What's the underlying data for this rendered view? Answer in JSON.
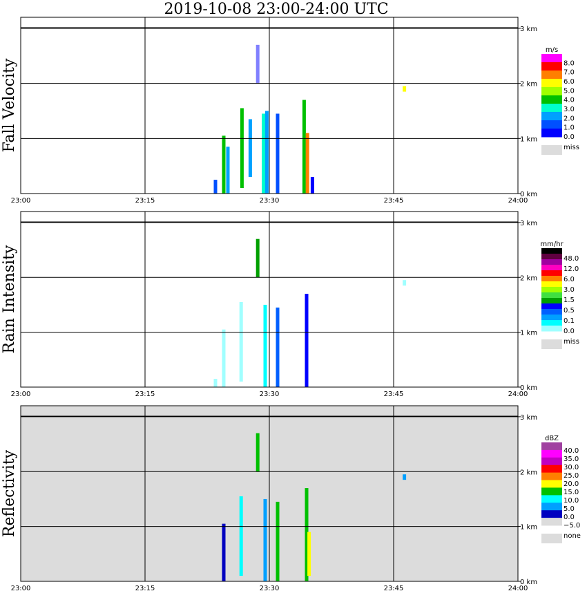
{
  "title": "2019-10-08   23:00-24:00 UTC",
  "chart_data": [
    {
      "type": "heatmap",
      "ylabel": "Fall Velocity",
      "x_ticks": [
        "23:00",
        "23:15",
        "23:30",
        "23:45",
        "24:00"
      ],
      "y_ticks": [
        "0 km",
        "1 km",
        "2 km",
        "3 km"
      ],
      "xlim": [
        "23:00",
        "24:00"
      ],
      "ylim_km": [
        0,
        3.2
      ],
      "background": "#ffffff",
      "colorbar": {
        "unit": "m/s",
        "levels": [
          "8.0",
          "7.0",
          "6.0",
          "5.0",
          "4.0",
          "3.0",
          "2.0",
          "1.0",
          "0.0"
        ],
        "colors": [
          "#ff00ff",
          "#ff0000",
          "#ff7f00",
          "#ffff00",
          "#a0ff00",
          "#00c000",
          "#00ffcc",
          "#00a0ff",
          "#0050ff",
          "#0000ff"
        ],
        "missing_label": "miss",
        "missing_color": "#dcdcdc"
      },
      "echoes": [
        {
          "t": 23.5,
          "bot": 0.0,
          "top": 0.25,
          "color": "#0050ff"
        },
        {
          "t": 24.5,
          "bot": 0.0,
          "top": 1.05,
          "color": "#00c000"
        },
        {
          "t": 25.0,
          "bot": 0.0,
          "top": 0.85,
          "color": "#00a0ff"
        },
        {
          "t": 26.7,
          "bot": 0.1,
          "top": 1.55,
          "color": "#00c000"
        },
        {
          "t": 27.7,
          "bot": 0.3,
          "top": 1.35,
          "color": "#00a0ff"
        },
        {
          "t": 28.6,
          "bot": 2.0,
          "top": 2.7,
          "color": "#8080ff"
        },
        {
          "t": 29.3,
          "bot": 0.0,
          "top": 1.45,
          "color": "#00ffcc"
        },
        {
          "t": 29.7,
          "bot": 0.0,
          "top": 1.5,
          "color": "#00a0ff"
        },
        {
          "t": 31.0,
          "bot": 0.0,
          "top": 1.45,
          "color": "#0050ff"
        },
        {
          "t": 34.2,
          "bot": 0.0,
          "top": 1.7,
          "color": "#00c000"
        },
        {
          "t": 34.6,
          "bot": 0.0,
          "top": 1.1,
          "color": "#ff7f00"
        },
        {
          "t": 35.2,
          "bot": 0.0,
          "top": 0.3,
          "color": "#0000ff"
        },
        {
          "t": 46.3,
          "bot": 1.85,
          "top": 1.95,
          "color": "#ffff00"
        }
      ]
    },
    {
      "type": "heatmap",
      "ylabel": "Rain Intensity",
      "x_ticks": [
        "23:00",
        "23:15",
        "23:30",
        "23:45",
        "24:00"
      ],
      "y_ticks": [
        "0 km",
        "1 km",
        "2 km",
        "3 km"
      ],
      "xlim": [
        "23:00",
        "24:00"
      ],
      "ylim_km": [
        0,
        3.2
      ],
      "background": "#ffffff",
      "colorbar": {
        "unit": "mm/hr",
        "levels": [
          "48.0",
          "12.0",
          "6.0",
          "3.0",
          "1.5",
          "0.5",
          "0.1",
          "0.0"
        ],
        "colors": [
          "#000000",
          "#600040",
          "#a000a0",
          "#ff00c0",
          "#ff0000",
          "#ff8000",
          "#ffff00",
          "#a0ff00",
          "#40e040",
          "#00a000",
          "#0000ff",
          "#0060ff",
          "#00a0ff",
          "#00ffff",
          "#a0ffff"
        ],
        "missing_label": "miss",
        "missing_color": "#dcdcdc"
      },
      "echoes": [
        {
          "t": 23.5,
          "bot": 0.0,
          "top": 0.15,
          "color": "#a0ffff"
        },
        {
          "t": 24.5,
          "bot": 0.0,
          "top": 1.05,
          "color": "#a0ffff"
        },
        {
          "t": 26.6,
          "bot": 0.1,
          "top": 1.55,
          "color": "#a0ffff"
        },
        {
          "t": 28.6,
          "bot": 2.0,
          "top": 2.7,
          "color": "#00a000"
        },
        {
          "t": 29.5,
          "bot": 0.0,
          "top": 1.5,
          "color": "#00ffff"
        },
        {
          "t": 31.0,
          "bot": 0.0,
          "top": 1.45,
          "color": "#0060ff"
        },
        {
          "t": 34.5,
          "bot": 0.0,
          "top": 1.7,
          "color": "#0000ff"
        },
        {
          "t": 46.3,
          "bot": 1.85,
          "top": 1.95,
          "color": "#a0ffff"
        }
      ]
    },
    {
      "type": "heatmap",
      "ylabel": "Reflectivity",
      "x_ticks": [
        "23:00",
        "23:15",
        "23:30",
        "23:45",
        "24:00"
      ],
      "y_ticks": [
        "0 km",
        "1 km",
        "2 km",
        "3 km"
      ],
      "xlim": [
        "23:00",
        "24:00"
      ],
      "ylim_km": [
        0,
        3.2
      ],
      "background": "#dcdcdc",
      "colorbar": {
        "unit": "dBZ",
        "levels": [
          "40.0",
          "35.0",
          "30.0",
          "25.0",
          "20.0",
          "15.0",
          "10.0",
          "5.0",
          "0.0",
          "−5.0"
        ],
        "colors": [
          "#a040a0",
          "#ff00ff",
          "#c000c0",
          "#ff0000",
          "#ff7f00",
          "#ffff00",
          "#00c000",
          "#00ffff",
          "#00a0ff",
          "#0000c0",
          "#dcdcdc"
        ],
        "missing_label": "none",
        "missing_color": "#dcdcdc"
      },
      "echoes": [
        {
          "t": 24.5,
          "bot": 0.0,
          "top": 1.05,
          "color": "#0000c0"
        },
        {
          "t": 26.6,
          "bot": 0.1,
          "top": 1.55,
          "color": "#00ffff"
        },
        {
          "t": 28.6,
          "bot": 2.0,
          "top": 2.7,
          "color": "#00c000"
        },
        {
          "t": 29.5,
          "bot": 0.0,
          "top": 1.5,
          "color": "#00a0ff"
        },
        {
          "t": 31.0,
          "bot": 0.0,
          "top": 1.45,
          "color": "#00c000"
        },
        {
          "t": 34.5,
          "bot": 0.0,
          "top": 1.7,
          "color": "#00c000"
        },
        {
          "t": 34.8,
          "bot": 0.1,
          "top": 0.9,
          "color": "#ffff00"
        },
        {
          "t": 46.3,
          "bot": 1.85,
          "top": 1.95,
          "color": "#00a0ff"
        }
      ]
    }
  ]
}
